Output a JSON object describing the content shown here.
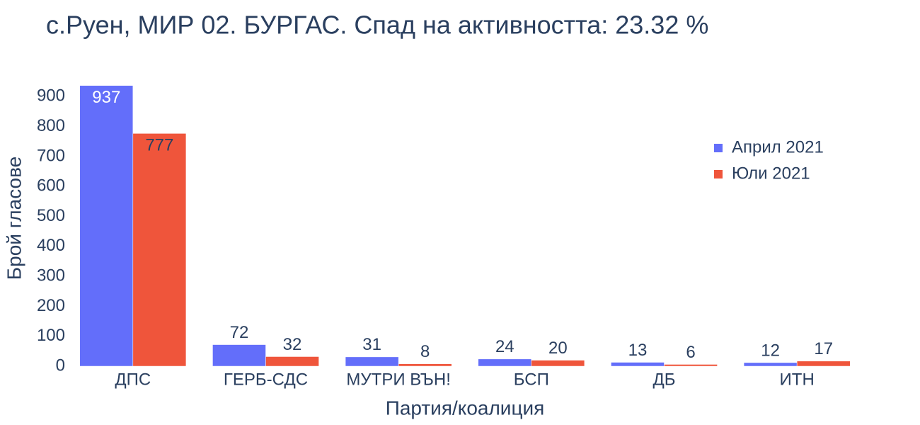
{
  "chart_data": {
    "type": "bar",
    "title": "с.Руен, МИР 02. БУРГАС. Спад на активността: 23.32 %",
    "x_label": "Партия/коалиция",
    "y_label": "Брой гласове",
    "categories": [
      "ДПС",
      "ГЕРБ-СДС",
      "МУТРИ ВЪН!",
      "БСП",
      "ДБ",
      "ИТН"
    ],
    "series": [
      {
        "name": "Април 2021",
        "color": "#636efa",
        "values": [
          937,
          72,
          31,
          24,
          13,
          12
        ]
      },
      {
        "name": "Юли 2021",
        "color": "#ef553b",
        "values": [
          777,
          32,
          8,
          20,
          6,
          17
        ]
      }
    ],
    "ylim": [
      0,
      986
    ],
    "yticks": [
      0,
      100,
      200,
      300,
      400,
      500,
      600,
      700,
      800,
      900
    ],
    "grid": false,
    "legend_position": "upper right"
  }
}
